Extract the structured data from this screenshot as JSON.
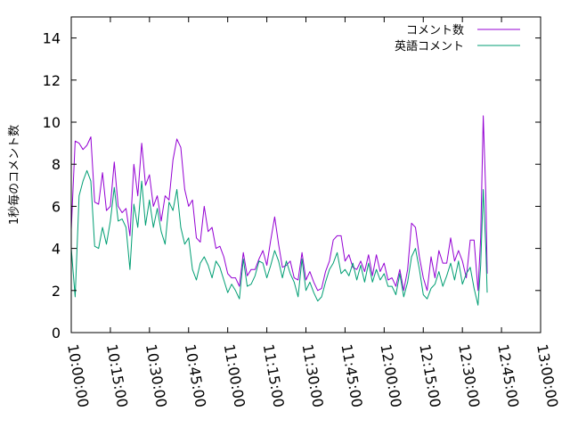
{
  "chart_data": {
    "type": "line",
    "title": "",
    "xlabel": "",
    "ylabel": "1秒毎のコメント数",
    "ylim": [
      0,
      15
    ],
    "yticks": [
      0,
      2,
      4,
      6,
      8,
      10,
      12,
      14
    ],
    "xlim": [
      "10:00:00",
      "13:00:00"
    ],
    "xticks": [
      "10:00:00",
      "10:15:00",
      "10:30:00",
      "10:45:00",
      "11:00:00",
      "11:15:00",
      "11:30:00",
      "11:45:00",
      "12:00:00",
      "12:15:00",
      "12:30:00",
      "12:45:00",
      "13:00:00"
    ],
    "legend_position": "top-right",
    "grid": false,
    "series": [
      {
        "name": "コメント数",
        "color": "#9400d3",
        "points": [
          [
            "10:00:00",
            4.9
          ],
          [
            "10:01:30",
            9.1
          ],
          [
            "10:03:00",
            9.0
          ],
          [
            "10:04:30",
            8.7
          ],
          [
            "10:06:00",
            8.9
          ],
          [
            "10:07:30",
            9.3
          ],
          [
            "10:09:00",
            6.2
          ],
          [
            "10:10:30",
            6.1
          ],
          [
            "10:12:00",
            7.6
          ],
          [
            "10:13:30",
            5.8
          ],
          [
            "10:15:00",
            6.0
          ],
          [
            "10:16:30",
            8.1
          ],
          [
            "10:18:00",
            6.0
          ],
          [
            "10:19:30",
            5.7
          ],
          [
            "10:21:00",
            5.9
          ],
          [
            "10:22:30",
            4.6
          ],
          [
            "10:24:00",
            8.0
          ],
          [
            "10:25:30",
            6.5
          ],
          [
            "10:27:00",
            9.0
          ],
          [
            "10:28:30",
            7.0
          ],
          [
            "10:30:00",
            7.5
          ],
          [
            "10:31:30",
            6.0
          ],
          [
            "10:33:00",
            6.5
          ],
          [
            "10:34:30",
            5.3
          ],
          [
            "10:36:00",
            6.5
          ],
          [
            "10:37:30",
            6.3
          ],
          [
            "10:39:00",
            8.2
          ],
          [
            "10:40:30",
            9.2
          ],
          [
            "10:42:00",
            8.8
          ],
          [
            "10:43:30",
            6.8
          ],
          [
            "10:45:00",
            6.0
          ],
          [
            "10:46:30",
            6.3
          ],
          [
            "10:48:00",
            4.5
          ],
          [
            "10:49:30",
            4.3
          ],
          [
            "10:51:00",
            6.0
          ],
          [
            "10:52:30",
            4.8
          ],
          [
            "10:54:00",
            5.0
          ],
          [
            "10:55:30",
            4.0
          ],
          [
            "10:57:00",
            4.1
          ],
          [
            "10:58:30",
            3.6
          ],
          [
            "11:00:00",
            2.8
          ],
          [
            "11:01:30",
            2.6
          ],
          [
            "11:03:00",
            2.6
          ],
          [
            "11:04:30",
            2.2
          ],
          [
            "11:06:00",
            3.8
          ],
          [
            "11:07:30",
            2.7
          ],
          [
            "11:09:00",
            3.0
          ],
          [
            "11:10:30",
            3.0
          ],
          [
            "11:12:00",
            3.5
          ],
          [
            "11:13:30",
            3.9
          ],
          [
            "11:15:00",
            3.2
          ],
          [
            "11:16:30",
            4.4
          ],
          [
            "11:18:00",
            5.5
          ],
          [
            "11:19:30",
            4.2
          ],
          [
            "11:21:00",
            3.1
          ],
          [
            "11:22:30",
            3.2
          ],
          [
            "11:24:00",
            3.4
          ],
          [
            "11:25:30",
            2.6
          ],
          [
            "11:27:00",
            2.5
          ],
          [
            "11:28:30",
            3.8
          ],
          [
            "11:30:00",
            2.5
          ],
          [
            "11:31:30",
            2.9
          ],
          [
            "11:33:00",
            2.4
          ],
          [
            "11:34:30",
            2.0
          ],
          [
            "11:36:00",
            2.1
          ],
          [
            "11:37:30",
            2.9
          ],
          [
            "11:39:00",
            3.4
          ],
          [
            "11:40:30",
            4.4
          ],
          [
            "11:42:00",
            4.6
          ],
          [
            "11:43:30",
            4.6
          ],
          [
            "11:45:00",
            3.4
          ],
          [
            "11:46:30",
            3.7
          ],
          [
            "11:48:00",
            3.1
          ],
          [
            "11:49:30",
            3.0
          ],
          [
            "11:51:00",
            3.4
          ],
          [
            "11:52:30",
            2.9
          ],
          [
            "11:54:00",
            3.7
          ],
          [
            "11:55:30",
            2.7
          ],
          [
            "11:57:00",
            3.7
          ],
          [
            "11:58:30",
            2.9
          ],
          [
            "12:00:00",
            3.3
          ],
          [
            "12:01:30",
            2.5
          ],
          [
            "12:03:00",
            2.6
          ],
          [
            "12:04:30",
            2.2
          ],
          [
            "12:06:00",
            3.0
          ],
          [
            "12:07:30",
            2.0
          ],
          [
            "12:09:00",
            3.0
          ],
          [
            "12:10:30",
            5.2
          ],
          [
            "12:12:00",
            5.0
          ],
          [
            "12:13:30",
            3.6
          ],
          [
            "12:15:00",
            2.6
          ],
          [
            "12:16:30",
            2.0
          ],
          [
            "12:18:00",
            3.6
          ],
          [
            "12:19:30",
            2.6
          ],
          [
            "12:21:00",
            3.9
          ],
          [
            "12:22:30",
            3.3
          ],
          [
            "12:24:00",
            3.3
          ],
          [
            "12:25:30",
            4.5
          ],
          [
            "12:27:00",
            3.4
          ],
          [
            "12:28:30",
            3.9
          ],
          [
            "12:30:00",
            3.4
          ],
          [
            "12:31:30",
            2.6
          ],
          [
            "12:33:00",
            4.4
          ],
          [
            "12:34:30",
            4.4
          ],
          [
            "12:36:00",
            2.0
          ],
          [
            "12:37:00",
            4.5
          ],
          [
            "12:38:00",
            10.3
          ],
          [
            "12:39:00",
            6.5
          ],
          [
            "12:39:30",
            2.8
          ]
        ]
      },
      {
        "name": "英語コメント",
        "color": "#009e73",
        "points": [
          [
            "10:00:00",
            4.0
          ],
          [
            "10:01:30",
            1.7
          ],
          [
            "10:03:00",
            6.5
          ],
          [
            "10:04:30",
            7.2
          ],
          [
            "10:06:00",
            7.7
          ],
          [
            "10:07:30",
            7.2
          ],
          [
            "10:09:00",
            4.1
          ],
          [
            "10:10:30",
            4.0
          ],
          [
            "10:12:00",
            5.0
          ],
          [
            "10:13:30",
            4.2
          ],
          [
            "10:15:00",
            5.3
          ],
          [
            "10:16:30",
            6.9
          ],
          [
            "10:18:00",
            5.3
          ],
          [
            "10:19:30",
            5.4
          ],
          [
            "10:21:00",
            5.0
          ],
          [
            "10:22:30",
            3.0
          ],
          [
            "10:24:00",
            6.1
          ],
          [
            "10:25:30",
            5.0
          ],
          [
            "10:27:00",
            7.2
          ],
          [
            "10:28:30",
            5.1
          ],
          [
            "10:30:00",
            6.3
          ],
          [
            "10:31:30",
            5.0
          ],
          [
            "10:33:00",
            5.9
          ],
          [
            "10:34:30",
            4.8
          ],
          [
            "10:36:00",
            4.2
          ],
          [
            "10:37:30",
            6.2
          ],
          [
            "10:39:00",
            5.8
          ],
          [
            "10:40:30",
            6.8
          ],
          [
            "10:42:00",
            5.0
          ],
          [
            "10:43:30",
            4.2
          ],
          [
            "10:45:00",
            4.5
          ],
          [
            "10:46:30",
            3.0
          ],
          [
            "10:48:00",
            2.5
          ],
          [
            "10:49:30",
            3.3
          ],
          [
            "10:51:00",
            3.6
          ],
          [
            "10:52:30",
            3.2
          ],
          [
            "10:54:00",
            2.6
          ],
          [
            "10:55:30",
            3.4
          ],
          [
            "10:57:00",
            3.1
          ],
          [
            "10:58:30",
            2.5
          ],
          [
            "11:00:00",
            1.9
          ],
          [
            "11:01:30",
            2.3
          ],
          [
            "11:03:00",
            2.0
          ],
          [
            "11:04:30",
            1.6
          ],
          [
            "11:06:00",
            3.5
          ],
          [
            "11:07:30",
            2.2
          ],
          [
            "11:09:00",
            2.3
          ],
          [
            "11:10:30",
            2.7
          ],
          [
            "11:12:00",
            3.4
          ],
          [
            "11:13:30",
            3.3
          ],
          [
            "11:15:00",
            2.6
          ],
          [
            "11:16:30",
            3.2
          ],
          [
            "11:18:00",
            3.9
          ],
          [
            "11:19:30",
            3.4
          ],
          [
            "11:21:00",
            2.6
          ],
          [
            "11:22:30",
            3.4
          ],
          [
            "11:24:00",
            2.8
          ],
          [
            "11:25:30",
            2.4
          ],
          [
            "11:27:00",
            1.7
          ],
          [
            "11:28:30",
            3.5
          ],
          [
            "11:30:00",
            2.0
          ],
          [
            "11:31:30",
            2.4
          ],
          [
            "11:33:00",
            1.9
          ],
          [
            "11:34:30",
            1.5
          ],
          [
            "11:36:00",
            1.7
          ],
          [
            "11:37:30",
            2.4
          ],
          [
            "11:39:00",
            3.0
          ],
          [
            "11:40:30",
            3.3
          ],
          [
            "11:42:00",
            3.8
          ],
          [
            "11:43:30",
            2.8
          ],
          [
            "11:45:00",
            3.0
          ],
          [
            "11:46:30",
            2.7
          ],
          [
            "11:48:00",
            3.3
          ],
          [
            "11:49:30",
            2.5
          ],
          [
            "11:51:00",
            3.2
          ],
          [
            "11:52:30",
            2.4
          ],
          [
            "11:54:00",
            3.3
          ],
          [
            "11:55:30",
            2.4
          ],
          [
            "11:57:00",
            3.0
          ],
          [
            "11:58:30",
            2.5
          ],
          [
            "12:00:00",
            2.8
          ],
          [
            "12:01:30",
            2.2
          ],
          [
            "12:03:00",
            2.2
          ],
          [
            "12:04:30",
            1.8
          ],
          [
            "12:06:00",
            2.8
          ],
          [
            "12:07:30",
            1.7
          ],
          [
            "12:09:00",
            2.4
          ],
          [
            "12:10:30",
            3.6
          ],
          [
            "12:12:00",
            4.0
          ],
          [
            "12:13:30",
            3.0
          ],
          [
            "12:15:00",
            1.8
          ],
          [
            "12:16:30",
            1.6
          ],
          [
            "12:18:00",
            2.1
          ],
          [
            "12:19:30",
            2.3
          ],
          [
            "12:21:00",
            2.9
          ],
          [
            "12:22:30",
            2.2
          ],
          [
            "12:24:00",
            2.7
          ],
          [
            "12:25:30",
            3.3
          ],
          [
            "12:27:00",
            2.5
          ],
          [
            "12:28:30",
            3.4
          ],
          [
            "12:30:00",
            2.3
          ],
          [
            "12:31:30",
            2.8
          ],
          [
            "12:33:00",
            3.1
          ],
          [
            "12:34:30",
            2.1
          ],
          [
            "12:36:00",
            1.3
          ],
          [
            "12:37:00",
            3.2
          ],
          [
            "12:38:00",
            6.8
          ],
          [
            "12:39:00",
            4.0
          ],
          [
            "12:39:30",
            1.9
          ]
        ]
      }
    ]
  }
}
